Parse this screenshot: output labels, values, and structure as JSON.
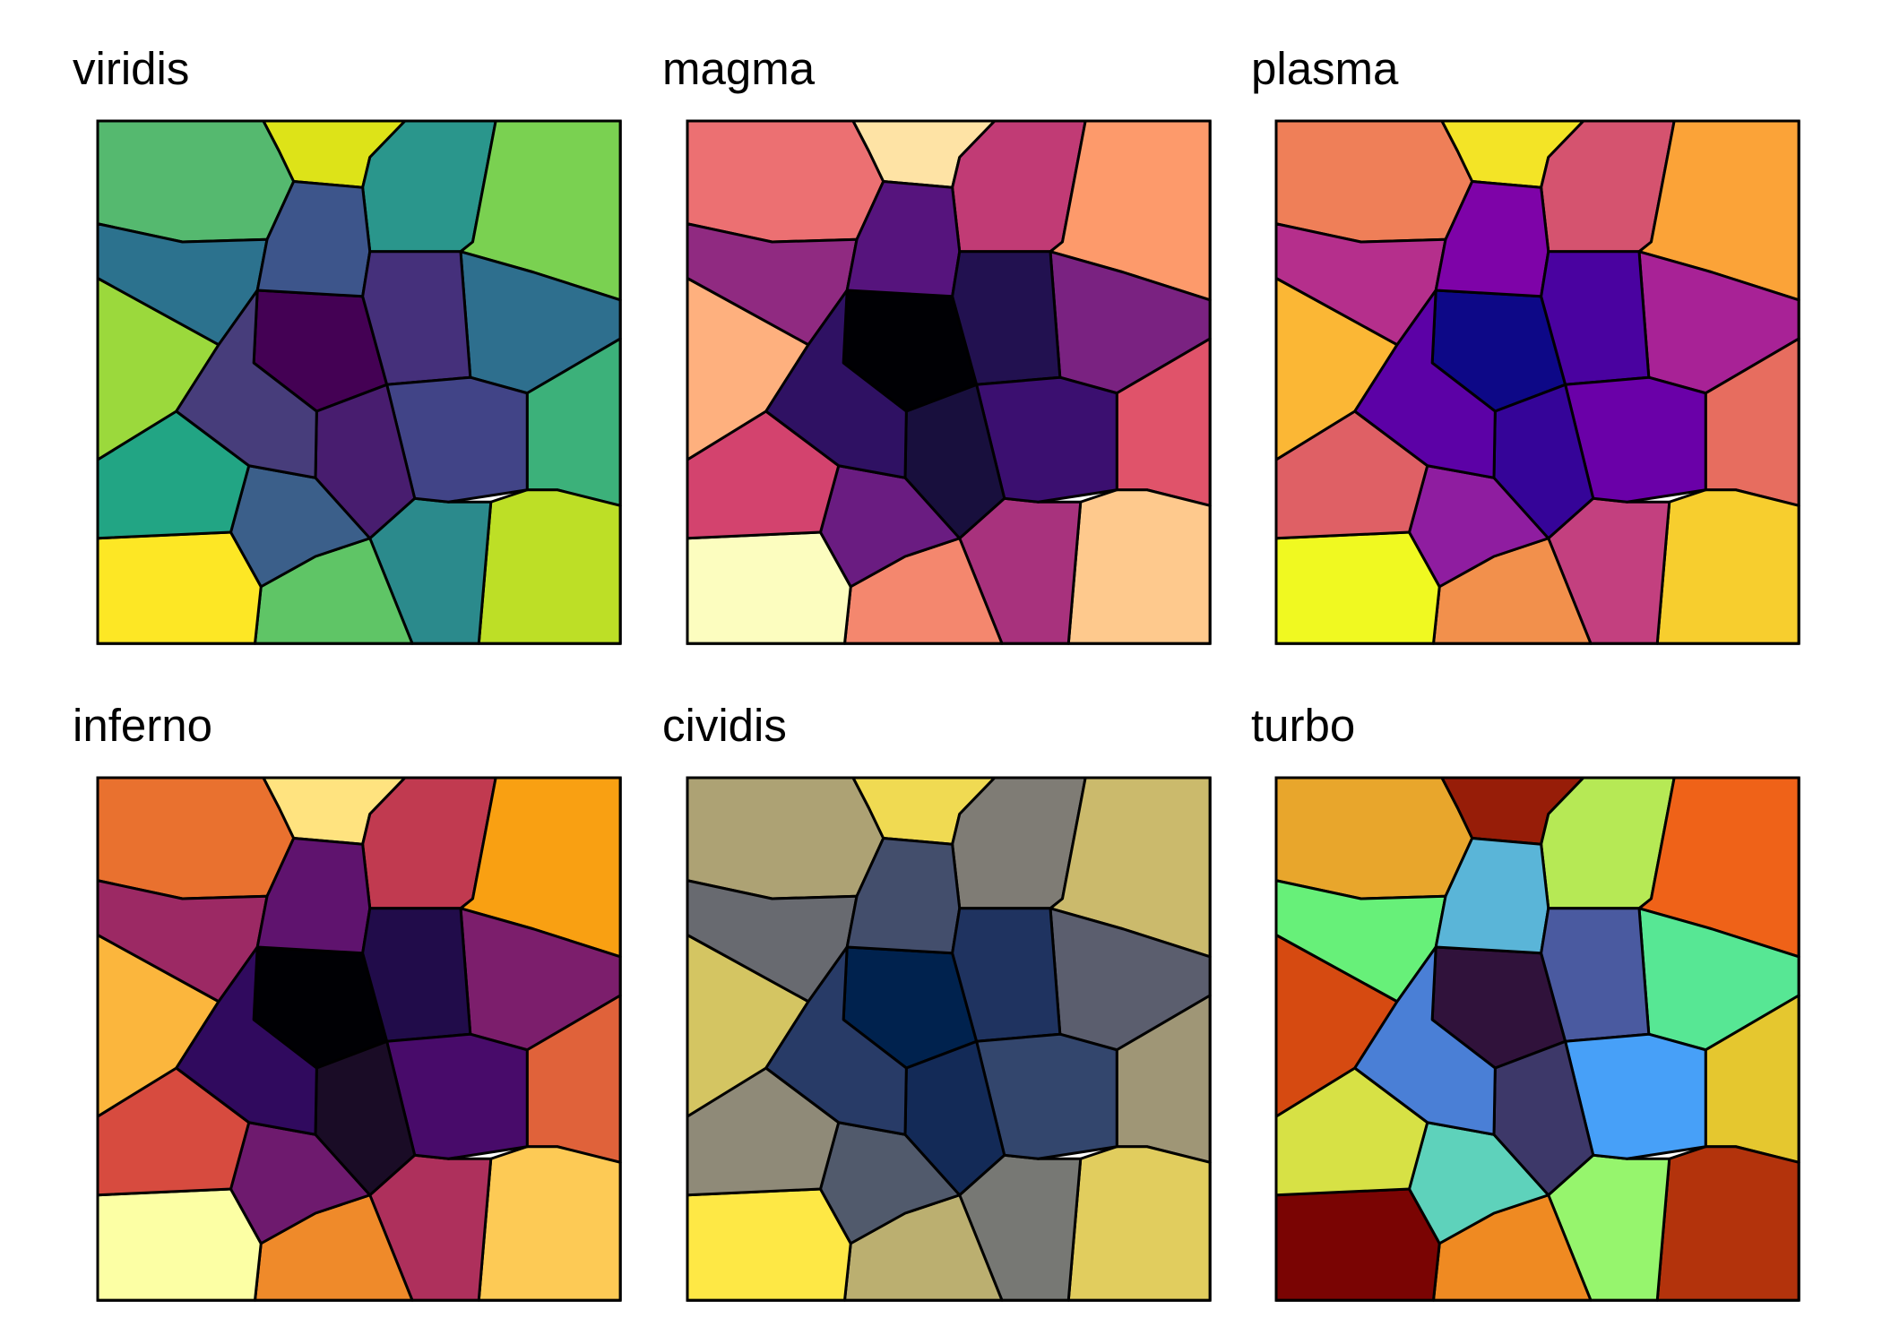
{
  "panels": [
    {
      "title": "viridis",
      "colors": [
        "#55b96f",
        "#dde318",
        "#2a968c",
        "#7ad151",
        "#2e6f8e",
        "#3cb17a",
        "#bddf26",
        "#2b8a8c",
        "#5fc566",
        "#fde725",
        "#3b5f8a",
        "#22a584",
        "#9bd93c",
        "#2c728e",
        "#440154",
        "#3d558b",
        "#45307b",
        "#414487",
        "#481d6f",
        "#473d7b"
      ]
    },
    {
      "title": "magma",
      "colors": [
        "#ec7072",
        "#fee3a5",
        "#c13b75",
        "#fd9a6b",
        "#7a2281",
        "#e0536a",
        "#fec98d",
        "#a8327d",
        "#f4876e",
        "#fcfdbf",
        "#6a1c81",
        "#d3436e",
        "#feb07e",
        "#902a81",
        "#000004",
        "#56147d",
        "#221150",
        "#3b0f70",
        "#180f3d",
        "#2f1163"
      ]
    },
    {
      "title": "plasma",
      "colors": [
        "#ef7f58",
        "#f3e426",
        "#d5536f",
        "#fba338",
        "#a82296",
        "#e76d5f",
        "#f7ce2e",
        "#c3407f",
        "#f2904c",
        "#f0f921",
        "#8f1da0",
        "#df6065",
        "#fbb735",
        "#b52f8c",
        "#0d0887",
        "#7e03a8",
        "#4a02a0",
        "#6a00a8",
        "#350498",
        "#5c01a6"
      ]
    },
    {
      "title": "inferno",
      "colors": [
        "#e9712f",
        "#ffe37f",
        "#c13a50",
        "#f9a012",
        "#7c1e6c",
        "#e0623a",
        "#fdca55",
        "#ae305c",
        "#ef8a2a",
        "#fcffa4",
        "#6e1a6e",
        "#d74b3f",
        "#fbb63d",
        "#9c2964",
        "#000004",
        "#5f136e",
        "#210c4a",
        "#480b6a",
        "#1a0c26",
        "#300a5e"
      ]
    },
    {
      "title": "cividis",
      "colors": [
        "#ada274",
        "#f0da52",
        "#7f7c75",
        "#cbba6c",
        "#5b5e6e",
        "#9f9676",
        "#e1cd5e",
        "#777874",
        "#bbaf70",
        "#fee845",
        "#515a6c",
        "#8f8a78",
        "#d4c562",
        "#686a70",
        "#00224e",
        "#434e6c",
        "#1f3360",
        "#33466d",
        "#132a57",
        "#283b67"
      ]
    },
    {
      "title": "turbo",
      "colors": [
        "#e8a62c",
        "#971d08",
        "#b6e955",
        "#ef6218",
        "#57e794",
        "#e5c72f",
        "#b3330c",
        "#96f56d",
        "#ef8a22",
        "#7a0403",
        "#5ed2bb",
        "#d7e145",
        "#d64a11",
        "#67f079",
        "#30123b",
        "#5ab5d8",
        "#4a5aa0",
        "#47a0f8",
        "#3d3869",
        "#4a7fd6"
      ]
    }
  ]
}
